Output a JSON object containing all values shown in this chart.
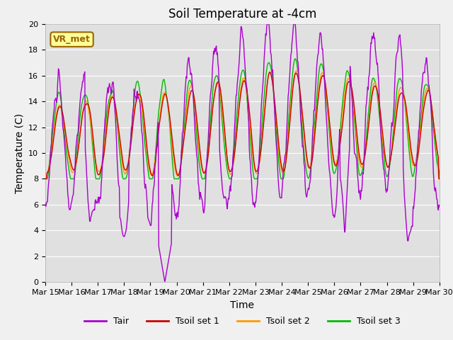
{
  "title": "Soil Temperature at -4cm",
  "xlabel": "Time",
  "ylabel": "Temperature (C)",
  "ylim": [
    0,
    20
  ],
  "xlim": [
    0,
    15
  ],
  "x_tick_labels": [
    "Mar 15",
    "Mar 16",
    "Mar 17",
    "Mar 18",
    "Mar 19",
    "Mar 20",
    "Mar 21",
    "Mar 22",
    "Mar 23",
    "Mar 24",
    "Mar 25",
    "Mar 26",
    "Mar 27",
    "Mar 28",
    "Mar 29",
    "Mar 30"
  ],
  "fig_bg_color": "#f0f0f0",
  "plot_bg_color": "#e0e0e0",
  "legend_labels": [
    "Tair",
    "Tsoil set 1",
    "Tsoil set 2",
    "Tsoil set 3"
  ],
  "legend_colors": [
    "#aa00cc",
    "#cc0000",
    "#ff9900",
    "#00bb00"
  ],
  "annotation_text": "VR_met",
  "annotation_bg": "#ffff99",
  "annotation_border": "#996600",
  "title_fontsize": 12,
  "axis_label_fontsize": 10,
  "tick_fontsize": 8,
  "legend_fontsize": 9
}
